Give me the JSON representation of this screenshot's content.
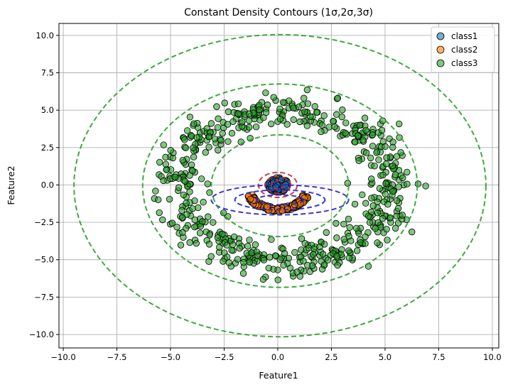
{
  "chart_data": {
    "type": "scatter",
    "title": "Constant Density Contours (1σ,2σ,3σ)",
    "xlabel": "Feature1",
    "ylabel": "Feature2",
    "xlim": [
      -10.2,
      10.3
    ],
    "ylim": [
      -10.9,
      10.8
    ],
    "xticks": [
      -10.0,
      -7.5,
      -5.0,
      -2.5,
      0.0,
      2.5,
      5.0,
      7.5,
      10.0
    ],
    "xtick_labels": [
      "−10.0",
      "−7.5",
      "−5.0",
      "−2.5",
      "0.0",
      "2.5",
      "5.0",
      "7.5",
      "10.0"
    ],
    "yticks": [
      -10.0,
      -7.5,
      -5.0,
      -2.5,
      0.0,
      2.5,
      5.0,
      7.5,
      10.0
    ],
    "ytick_labels": [
      "−10.0",
      "−7.5",
      "−5.0",
      "−2.5",
      "0.0",
      "2.5",
      "5.0",
      "7.5",
      "10.0"
    ],
    "grid": true,
    "legend_position": "top-right",
    "series": [
      {
        "name": "class1",
        "color": "#1f77b4",
        "distribution": "disk",
        "center": [
          0.0,
          0.0
        ],
        "radius": 0.5,
        "count": 150
      },
      {
        "name": "class2",
        "color": "#ff7f0e",
        "distribution": "arc",
        "arc_center": [
          0.0,
          -0.2
        ],
        "arc_radius": [
          1.4,
          1.5
        ],
        "arc_angles_deg": [
          200,
          340
        ],
        "arc_thickness": 0.3,
        "count": 150
      },
      {
        "name": "class3",
        "color": "#2ca02c",
        "distribution": "ring",
        "ring_center": [
          0.3,
          -0.1
        ],
        "ring_radius": [
          5.0,
          5.0
        ],
        "ring_thickness": 1.3,
        "count": 600
      }
    ],
    "contours": [
      {
        "class": "class1",
        "color": "#d62728",
        "center": [
          0.0,
          0.0
        ],
        "sigma_radii": [
          [
            0.3,
            0.28
          ],
          [
            0.6,
            0.56
          ],
          [
            0.9,
            0.84
          ]
        ]
      },
      {
        "class": "class2",
        "color": "#2222dd",
        "center": [
          0.1,
          -1.0
        ],
        "sigma_radii": [
          [
            1.1,
            0.33
          ],
          [
            2.1,
            0.67
          ],
          [
            3.2,
            1.0
          ]
        ]
      },
      {
        "class": "class3",
        "color": "#2ca02c",
        "center": [
          0.1,
          -0.05
        ],
        "sigma_radii": [
          [
            3.2,
            3.4
          ],
          [
            6.4,
            6.8
          ],
          [
            9.6,
            10.1
          ]
        ]
      }
    ]
  }
}
